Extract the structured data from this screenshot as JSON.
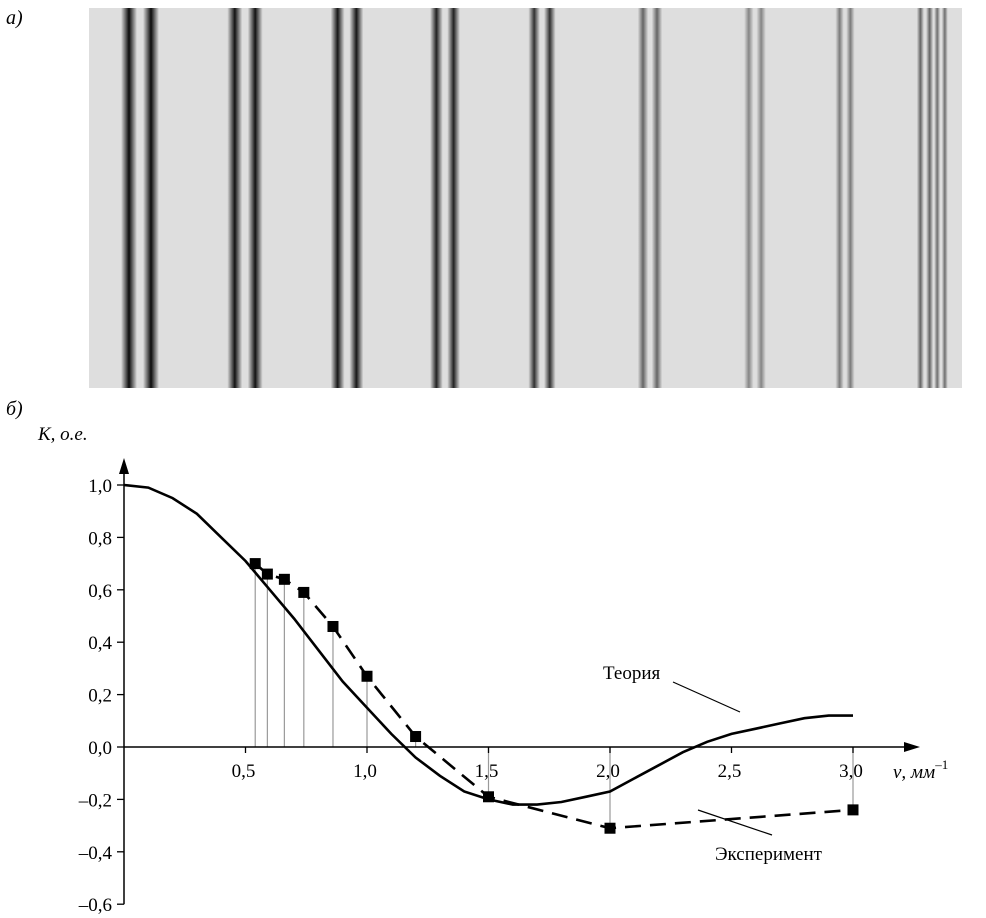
{
  "panel_a": {
    "label": "а)",
    "description_stripes": [
      {
        "darkness": 0.95,
        "pair": true
      },
      {
        "darkness": 0.92,
        "pair": true
      },
      {
        "darkness": 0.9,
        "pair": true
      },
      {
        "darkness": 0.85,
        "pair": true
      },
      {
        "darkness": 0.78,
        "pair": true
      },
      {
        "darkness": 0.55,
        "pair": true
      },
      {
        "darkness": 0.4,
        "pair": true
      },
      {
        "darkness": 0.45,
        "pair": true
      },
      {
        "darkness": 0.55,
        "pair": true
      },
      {
        "darkness": 0.5,
        "pair": true
      }
    ]
  },
  "panel_b": {
    "label": "б)"
  },
  "chart_data": {
    "type": "line",
    "title": "",
    "ylabel": "K, о.е.",
    "xlabel": "ν, мм",
    "xlabel_superscript": "–1",
    "xlim": [
      0,
      3.2
    ],
    "ylim": [
      -0.6,
      1.0
    ],
    "x_ticks": [
      {
        "value": 0.5,
        "label": "0,5"
      },
      {
        "value": 1.0,
        "label": "1,0"
      },
      {
        "value": 1.5,
        "label": "1,5"
      },
      {
        "value": 2.0,
        "label": "2,0"
      },
      {
        "value": 2.5,
        "label": "2,5"
      },
      {
        "value": 3.0,
        "label": "3,0"
      }
    ],
    "y_ticks": [
      {
        "value": 1.0,
        "label": "1,0"
      },
      {
        "value": 0.8,
        "label": "0,8"
      },
      {
        "value": 0.6,
        "label": "0,6"
      },
      {
        "value": 0.4,
        "label": "0,4"
      },
      {
        "value": 0.2,
        "label": "0,2"
      },
      {
        "value": 0.0,
        "label": "0,0"
      },
      {
        "value": -0.2,
        "label": "–0,2"
      },
      {
        "value": -0.4,
        "label": "–0,4"
      },
      {
        "value": -0.6,
        "label": "–0,6"
      }
    ],
    "series": [
      {
        "name": "Теория",
        "style": "solid",
        "color": "#000000",
        "x": [
          0,
          0.1,
          0.2,
          0.3,
          0.4,
          0.5,
          0.6,
          0.7,
          0.8,
          0.9,
          1.0,
          1.1,
          1.2,
          1.3,
          1.4,
          1.5,
          1.6,
          1.7,
          1.8,
          1.9,
          2.0,
          2.1,
          2.2,
          2.3,
          2.4,
          2.5,
          2.6,
          2.7,
          2.8,
          2.9,
          3.0
        ],
        "y": [
          1.0,
          0.99,
          0.95,
          0.89,
          0.8,
          0.71,
          0.6,
          0.49,
          0.37,
          0.25,
          0.15,
          0.05,
          -0.04,
          -0.11,
          -0.17,
          -0.2,
          -0.22,
          -0.22,
          -0.21,
          -0.19,
          -0.17,
          -0.12,
          -0.07,
          -0.02,
          0.02,
          0.05,
          0.07,
          0.09,
          0.11,
          0.12,
          0.12
        ]
      },
      {
        "name": "Эксперимент",
        "style": "dashed",
        "color": "#000000",
        "markers": "square",
        "x": [
          0.54,
          0.59,
          0.66,
          0.74,
          0.86,
          1.0,
          1.2,
          1.5,
          2.0,
          3.0
        ],
        "y": [
          0.7,
          0.66,
          0.64,
          0.59,
          0.46,
          0.27,
          0.04,
          -0.19,
          -0.31,
          -0.24
        ]
      }
    ],
    "annotations": [
      {
        "text": "Теория",
        "target_series": "Теория"
      },
      {
        "text": "Эксперимент",
        "target_series": "Эксперимент"
      }
    ],
    "legend": "none",
    "grid": false
  }
}
